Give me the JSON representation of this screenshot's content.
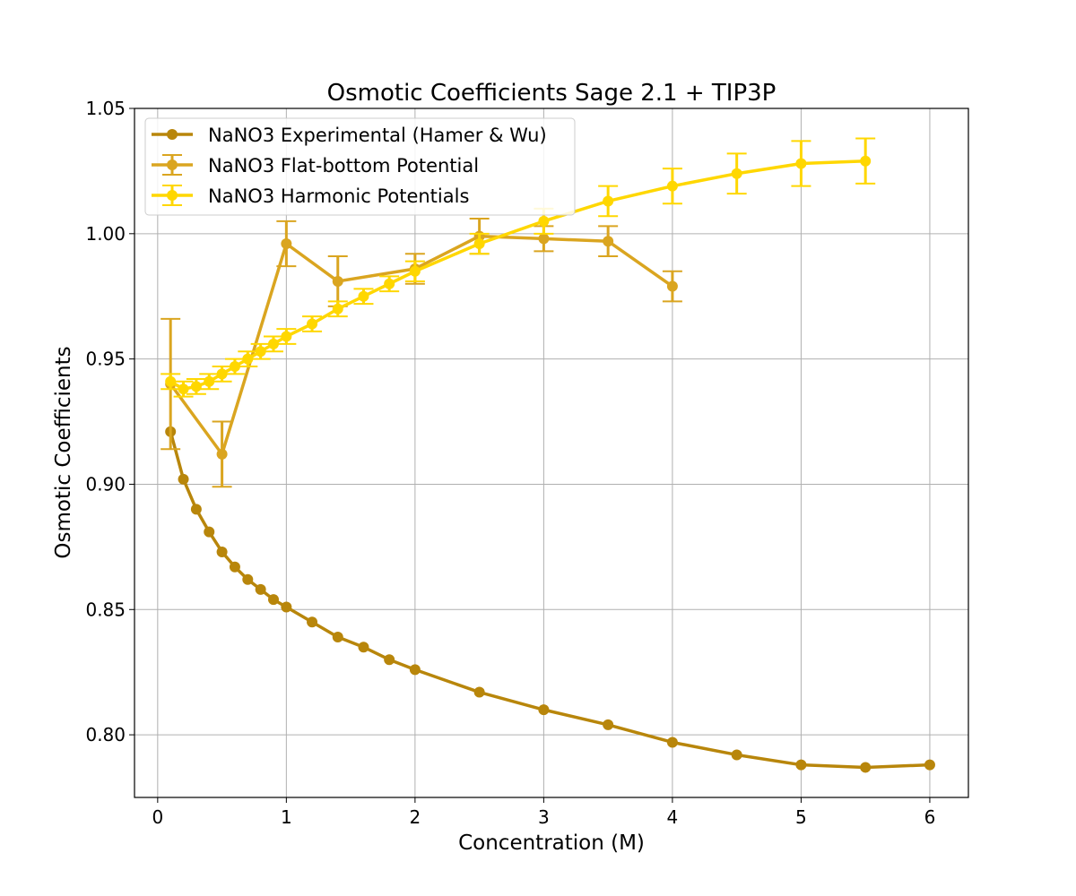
{
  "chart_data": {
    "type": "line",
    "title": "Osmotic Coefficients Sage 2.1 + TIP3P",
    "xlabel": "Concentration (M)",
    "ylabel": "Osmotic Coefficients",
    "xlim": [
      -0.18,
      6.3
    ],
    "ylim": [
      0.775,
      1.05
    ],
    "xticks": [
      "0",
      "1",
      "2",
      "3",
      "4",
      "5",
      "6"
    ],
    "yticks": [
      "0.80",
      "0.85",
      "0.90",
      "0.95",
      "1.00",
      "1.05"
    ],
    "grid": true,
    "legend_position": "upper-left",
    "series": [
      {
        "name": "NaNO3 Experimental (Hamer & Wu)",
        "color": "#b8860b",
        "x": [
          0.1,
          0.2,
          0.3,
          0.4,
          0.5,
          0.6,
          0.7,
          0.8,
          0.9,
          1.0,
          1.2,
          1.4,
          1.6,
          1.8,
          2.0,
          2.5,
          3.0,
          3.5,
          4.0,
          4.5,
          5.0,
          5.5,
          6.0
        ],
        "y": [
          0.921,
          0.902,
          0.89,
          0.881,
          0.873,
          0.867,
          0.862,
          0.858,
          0.854,
          0.851,
          0.845,
          0.839,
          0.835,
          0.83,
          0.826,
          0.817,
          0.81,
          0.804,
          0.797,
          0.792,
          0.788,
          0.787,
          0.788
        ],
        "err": null
      },
      {
        "name": "NaNO3 Flat-bottom Potential",
        "color": "#daa520",
        "x": [
          0.1,
          0.5,
          1.0,
          1.4,
          2.0,
          2.5,
          3.0,
          3.5,
          4.0
        ],
        "y": [
          0.94,
          0.912,
          0.996,
          0.981,
          0.986,
          0.999,
          0.998,
          0.997,
          0.979
        ],
        "err": [
          0.026,
          0.013,
          0.009,
          0.01,
          0.006,
          0.007,
          0.005,
          0.006,
          0.006
        ]
      },
      {
        "name": "NaNO3 Harmonic Potentials",
        "color": "#ffd700",
        "x": [
          0.1,
          0.2,
          0.3,
          0.4,
          0.5,
          0.6,
          0.7,
          0.8,
          0.9,
          1.0,
          1.2,
          1.4,
          1.6,
          1.8,
          2.0,
          2.5,
          3.0,
          3.5,
          4.0,
          4.5,
          5.0,
          5.5
        ],
        "y": [
          0.941,
          0.938,
          0.939,
          0.941,
          0.944,
          0.947,
          0.95,
          0.953,
          0.956,
          0.959,
          0.964,
          0.97,
          0.975,
          0.98,
          0.985,
          0.996,
          1.005,
          1.013,
          1.019,
          1.024,
          1.028,
          1.029
        ],
        "err": [
          0.003,
          0.003,
          0.003,
          0.003,
          0.003,
          0.003,
          0.003,
          0.003,
          0.003,
          0.003,
          0.003,
          0.003,
          0.003,
          0.003,
          0.004,
          0.004,
          0.005,
          0.006,
          0.007,
          0.008,
          0.009,
          0.009
        ]
      }
    ]
  }
}
